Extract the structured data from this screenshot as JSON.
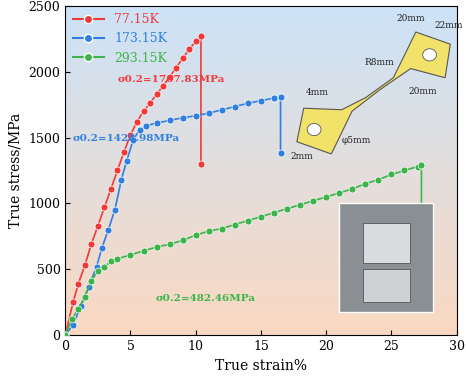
{
  "chart_data": {
    "type": "line",
    "x_label": "True strain%",
    "y_label": "True stress/MPa",
    "xlim": [
      0,
      30
    ],
    "ylim": [
      0,
      2500
    ],
    "xticks": [
      0,
      5,
      10,
      15,
      20,
      25,
      30
    ],
    "yticks": [
      0,
      500,
      1000,
      1500,
      2000,
      2500
    ],
    "legend": "upper left",
    "marker": "o",
    "series": [
      {
        "name": "77.15K",
        "color": "#f03a3a",
        "x": [
          0,
          0.6,
          1.0,
          1.5,
          2.0,
          2.5,
          3.0,
          3.5,
          4.0,
          4.5,
          5.0,
          5.5,
          6.0,
          6.5,
          7.0,
          7.5,
          8.0,
          8.5,
          9.0,
          9.5,
          10.0,
          10.4,
          10.4
        ],
        "values": [
          0,
          250,
          390,
          530,
          690,
          830,
          970,
          1110,
          1250,
          1390,
          1520,
          1620,
          1700,
          1760,
          1830,
          1890,
          1960,
          2030,
          2100,
          2170,
          2230,
          2270,
          1300
        ]
      },
      {
        "name": "173.15K",
        "color": "#2f7fe0",
        "x": [
          0,
          0.6,
          1.2,
          1.8,
          2.4,
          2.8,
          3.3,
          3.8,
          4.3,
          4.7,
          5.2,
          5.7,
          6.2,
          7,
          8,
          9,
          10,
          11,
          12,
          13,
          14,
          15,
          16,
          16.5,
          16.5
        ],
        "values": [
          0,
          80,
          220,
          370,
          520,
          660,
          800,
          950,
          1180,
          1320,
          1480,
          1560,
          1590,
          1610,
          1630,
          1650,
          1665,
          1685,
          1710,
          1735,
          1760,
          1780,
          1800,
          1805,
          1380
        ]
      },
      {
        "name": "293.15K",
        "color": "#3cb44b",
        "x": [
          0,
          0.5,
          1.0,
          1.5,
          2,
          2.5,
          3,
          3.5,
          4,
          5,
          6,
          7,
          8,
          9,
          10,
          11,
          12,
          13,
          14,
          15,
          16,
          17,
          18,
          19,
          20,
          21,
          22,
          23,
          24,
          25,
          26,
          27,
          27.3,
          27.3
        ],
        "values": [
          0,
          120,
          200,
          290,
          410,
          490,
          520,
          560,
          580,
          610,
          640,
          670,
          690,
          720,
          760,
          790,
          810,
          840,
          870,
          900,
          930,
          960,
          990,
          1020,
          1050,
          1080,
          1110,
          1150,
          1180,
          1220,
          1250,
          1280,
          1295,
          550
        ]
      }
    ],
    "annotations": [
      {
        "text": "σ0.2=1767.83MPa",
        "color": "#f03a3a"
      },
      {
        "text": "σ0.2=1428.98MPa",
        "color": "#2f7fe0"
      },
      {
        "text": "σ0.2=482.46MPa",
        "color": "#3cb44b"
      }
    ],
    "inset": {
      "dimension_labels": [
        "20mm",
        "22mm",
        "R8mm",
        "20mm",
        "4mm",
        "φ5mm",
        "2mm"
      ]
    }
  }
}
